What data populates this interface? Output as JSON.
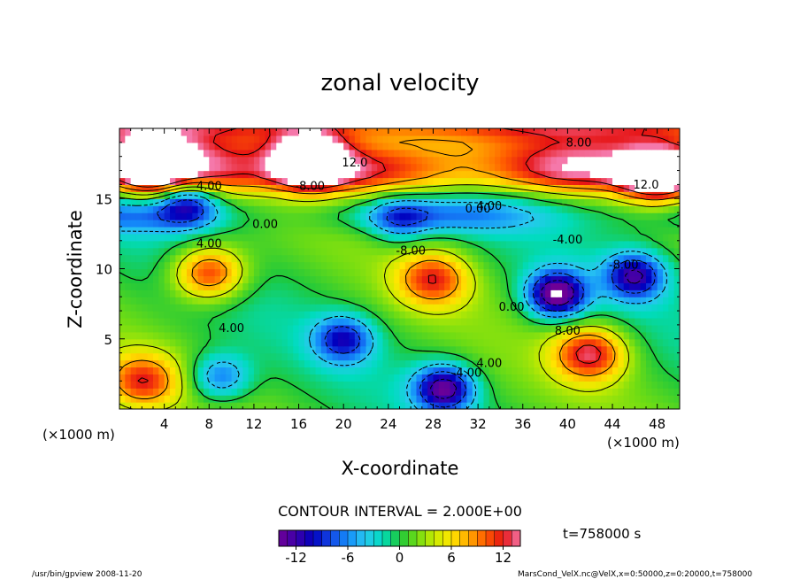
{
  "chart_data": {
    "type": "heatmap",
    "title": "zonal velocity",
    "xlabel": "X-coordinate",
    "ylabel": "Z-coordinate",
    "x_unit_note": "(×1000 m)",
    "z_unit_note": "(×1000 m)",
    "xlim": [
      0,
      50
    ],
    "ylim": [
      0,
      20
    ],
    "x_ticks": [
      "4",
      "8",
      "12",
      "16",
      "20",
      "24",
      "28",
      "32",
      "36",
      "40",
      "44",
      "48"
    ],
    "x_tick_values": [
      4,
      8,
      12,
      16,
      20,
      24,
      28,
      32,
      36,
      40,
      44,
      48
    ],
    "y_ticks": [
      "5",
      "10",
      "15"
    ],
    "y_tick_values": [
      5,
      10,
      15
    ],
    "contour_interval_text": "CONTOUR INTERVAL = 2.000E+00",
    "time_text": "t=758000 s",
    "colorbar": {
      "range": [
        -14,
        14
      ],
      "ticks": [
        "-12",
        "-6",
        "0",
        "6",
        "12"
      ],
      "tick_values": [
        -12,
        -6,
        0,
        6,
        12
      ]
    },
    "contour_labels": [
      {
        "text": "8.00",
        "x": 41,
        "y": 18.7
      },
      {
        "text": "12.0",
        "x": 21,
        "y": 17.3
      },
      {
        "text": "12.0",
        "x": 47,
        "y": 15.7
      },
      {
        "text": "4.00",
        "x": 8,
        "y": 15.6
      },
      {
        "text": "-8.00",
        "x": 17,
        "y": 15.6
      },
      {
        "text": "0.00",
        "x": 13,
        "y": 12.9
      },
      {
        "text": "0.00",
        "x": 32,
        "y": 14.0
      },
      {
        "text": "4.00",
        "x": 33,
        "y": 14.2
      },
      {
        "text": "4.00",
        "x": 8,
        "y": 11.5
      },
      {
        "text": "-8.00",
        "x": 26,
        "y": 11.0
      },
      {
        "text": "-8.00",
        "x": 45,
        "y": 10.0
      },
      {
        "text": "-4.00",
        "x": 40,
        "y": 11.8
      },
      {
        "text": "0.00",
        "x": 35,
        "y": 7.0
      },
      {
        "text": "4.00",
        "x": 10,
        "y": 5.5
      },
      {
        "text": "8.00",
        "x": 40,
        "y": 5.3
      },
      {
        "text": "4.00",
        "x": 33,
        "y": 3.0
      },
      {
        "text": "-4.00",
        "x": 31,
        "y": 2.3
      }
    ],
    "features": [
      {
        "kind": "max",
        "value": 16,
        "x": 17,
        "y": 17.8
      },
      {
        "kind": "max",
        "value": 14,
        "x": 3,
        "y": 17.5
      },
      {
        "kind": "max",
        "value": 14,
        "x": 48,
        "y": 16.7
      },
      {
        "kind": "max",
        "value": 12,
        "x": 8,
        "y": 9.7
      },
      {
        "kind": "max",
        "value": 10,
        "x": 28,
        "y": 9.3
      },
      {
        "kind": "max",
        "value": 12,
        "x": 42,
        "y": 4.0
      },
      {
        "kind": "max",
        "value": 10,
        "x": 2,
        "y": 2.0
      },
      {
        "kind": "min",
        "value": -16,
        "x": 39,
        "y": 8.2
      },
      {
        "kind": "min",
        "value": -12,
        "x": 46,
        "y": 9.5
      },
      {
        "kind": "min",
        "value": -14,
        "x": 29,
        "y": 1.5
      },
      {
        "kind": "min",
        "value": -10,
        "x": 20,
        "y": 5.0
      },
      {
        "kind": "min",
        "value": -8,
        "x": 9,
        "y": 2.3
      },
      {
        "kind": "min",
        "value": -6,
        "x": 25,
        "y": 13.5
      },
      {
        "kind": "min",
        "value": -10,
        "x": 6,
        "y": 14.8
      }
    ]
  },
  "footer": {
    "left": "/usr/bin/gpview  2008-11-20",
    "right": "MarsCond_VelX.nc@VelX,x=0:50000,z=0:20000,t=758000"
  },
  "colors": {
    "missing": "#ffffff",
    "frame": "#000000"
  }
}
